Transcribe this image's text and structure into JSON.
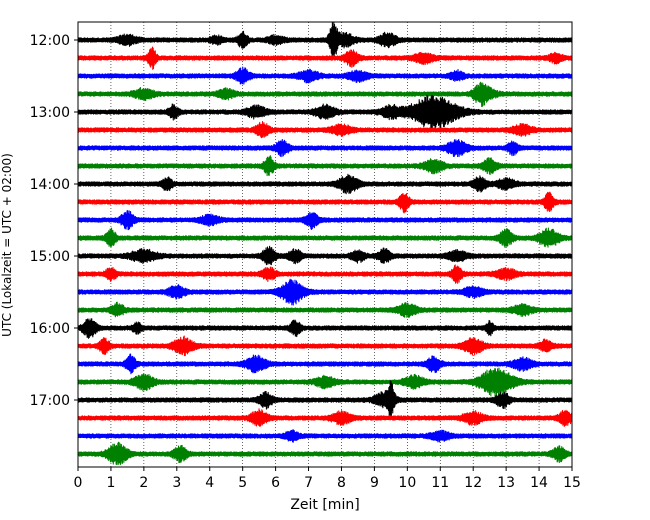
{
  "chart_data": {
    "type": "line",
    "title": "",
    "xlabel": "Zeit  [min]",
    "ylabel": "UTC (Lokalzeit = UTC + 02:00)",
    "xlim": [
      0,
      15
    ],
    "x_ticks": [
      0,
      1,
      2,
      3,
      4,
      5,
      6,
      7,
      8,
      9,
      10,
      11,
      12,
      13,
      14,
      15
    ],
    "x_tick_labels": [
      "0",
      "1",
      "2",
      "3",
      "4",
      "5",
      "6",
      "7",
      "8",
      "9",
      "10",
      "11",
      "12",
      "13",
      "14",
      "15"
    ],
    "y_tick_labels": [
      "12:00",
      "13:00",
      "14:00",
      "15:00",
      "16:00",
      "17:00"
    ],
    "y_tick_rows": [
      0,
      4,
      8,
      12,
      16,
      20
    ],
    "grid": "vertical dotted",
    "color_cycle": [
      "#000000",
      "#ff0000",
      "#0000ff",
      "#008000"
    ],
    "rows": [
      {
        "start": "12:00",
        "color": "#000000",
        "events": [
          [
            1.5,
            0.3,
            1.0
          ],
          [
            4.2,
            0.2,
            0.8
          ],
          [
            5.0,
            0.15,
            1.6
          ],
          [
            6.0,
            0.25,
            0.8
          ],
          [
            7.75,
            0.12,
            4.0
          ],
          [
            8.1,
            0.3,
            1.4
          ],
          [
            9.4,
            0.25,
            1.5
          ]
        ]
      },
      {
        "start": "12:15",
        "color": "#ff0000",
        "events": [
          [
            2.25,
            0.12,
            2.2
          ],
          [
            8.3,
            0.2,
            1.6
          ],
          [
            10.5,
            0.3,
            1.0
          ],
          [
            14.5,
            0.2,
            0.9
          ]
        ]
      },
      {
        "start": "12:30",
        "color": "#0000ff",
        "events": [
          [
            5.0,
            0.2,
            1.6
          ],
          [
            7.0,
            0.3,
            1.1
          ],
          [
            8.5,
            0.3,
            1.0
          ],
          [
            11.5,
            0.2,
            1.0
          ]
        ]
      },
      {
        "start": "12:45",
        "color": "#008000",
        "events": [
          [
            2.0,
            0.3,
            1.1
          ],
          [
            4.5,
            0.25,
            1.0
          ],
          [
            12.2,
            0.2,
            1.6
          ],
          [
            12.4,
            0.3,
            1.1
          ]
        ]
      },
      {
        "start": "13:00",
        "color": "#000000",
        "events": [
          [
            2.9,
            0.15,
            1.4
          ],
          [
            5.4,
            0.3,
            1.2
          ],
          [
            7.5,
            0.3,
            1.4
          ],
          [
            9.5,
            0.3,
            1.2
          ],
          [
            10.8,
            0.7,
            3.6
          ]
        ]
      },
      {
        "start": "13:15",
        "color": "#ff0000",
        "events": [
          [
            5.6,
            0.2,
            1.5
          ],
          [
            8.0,
            0.3,
            1.0
          ],
          [
            13.5,
            0.3,
            1.0
          ]
        ]
      },
      {
        "start": "13:30",
        "color": "#0000ff",
        "events": [
          [
            6.2,
            0.2,
            1.5
          ],
          [
            11.5,
            0.3,
            1.6
          ],
          [
            13.2,
            0.15,
            1.4
          ]
        ]
      },
      {
        "start": "13:45",
        "color": "#008000",
        "events": [
          [
            5.8,
            0.15,
            2.0
          ],
          [
            10.8,
            0.3,
            1.3
          ],
          [
            12.5,
            0.2,
            1.6
          ]
        ]
      },
      {
        "start": "14:00",
        "color": "#000000",
        "events": [
          [
            2.7,
            0.15,
            1.4
          ],
          [
            8.2,
            0.3,
            1.8
          ],
          [
            12.2,
            0.2,
            1.4
          ],
          [
            13.0,
            0.3,
            1.0
          ]
        ]
      },
      {
        "start": "14:15",
        "color": "#ff0000",
        "events": [
          [
            9.9,
            0.15,
            2.0
          ],
          [
            14.3,
            0.15,
            1.8
          ]
        ]
      },
      {
        "start": "14:30",
        "color": "#0000ff",
        "events": [
          [
            1.5,
            0.2,
            1.8
          ],
          [
            7.1,
            0.2,
            1.7
          ],
          [
            4.0,
            0.3,
            0.9
          ]
        ]
      },
      {
        "start": "14:45",
        "color": "#008000",
        "events": [
          [
            1.0,
            0.15,
            1.8
          ],
          [
            13.0,
            0.2,
            1.7
          ],
          [
            14.3,
            0.3,
            1.9
          ]
        ]
      },
      {
        "start": "15:00",
        "color": "#000000",
        "events": [
          [
            2.0,
            0.4,
            1.3
          ],
          [
            5.8,
            0.2,
            1.9
          ],
          [
            6.6,
            0.2,
            1.3
          ],
          [
            8.5,
            0.2,
            1.2
          ],
          [
            9.3,
            0.2,
            1.4
          ],
          [
            11.5,
            0.3,
            1.0
          ]
        ]
      },
      {
        "start": "15:15",
        "color": "#ff0000",
        "events": [
          [
            1.0,
            0.15,
            1.4
          ],
          [
            5.8,
            0.2,
            1.3
          ],
          [
            11.5,
            0.15,
            1.8
          ],
          [
            13.0,
            0.3,
            1.1
          ]
        ]
      },
      {
        "start": "15:30",
        "color": "#0000ff",
        "events": [
          [
            3.0,
            0.25,
            1.3
          ],
          [
            6.5,
            0.35,
            2.5
          ],
          [
            12.0,
            0.3,
            1.0
          ]
        ]
      },
      {
        "start": "15:45",
        "color": "#008000",
        "events": [
          [
            1.2,
            0.2,
            1.3
          ],
          [
            10.0,
            0.3,
            1.3
          ],
          [
            13.5,
            0.3,
            1.0
          ]
        ]
      },
      {
        "start": "16:00",
        "color": "#000000",
        "events": [
          [
            0.35,
            0.2,
            2.0
          ],
          [
            1.8,
            0.15,
            1.0
          ],
          [
            6.6,
            0.15,
            1.6
          ],
          [
            12.5,
            0.1,
            1.5
          ]
        ]
      },
      {
        "start": "16:15",
        "color": "#ff0000",
        "events": [
          [
            0.8,
            0.15,
            1.6
          ],
          [
            3.2,
            0.3,
            1.8
          ],
          [
            12.0,
            0.3,
            1.6
          ],
          [
            14.2,
            0.2,
            1.2
          ]
        ]
      },
      {
        "start": "16:30",
        "color": "#0000ff",
        "events": [
          [
            1.6,
            0.15,
            1.8
          ],
          [
            5.4,
            0.3,
            1.7
          ],
          [
            10.8,
            0.2,
            1.6
          ],
          [
            13.5,
            0.3,
            1.2
          ]
        ]
      },
      {
        "start": "16:45",
        "color": "#008000",
        "events": [
          [
            2.0,
            0.3,
            1.6
          ],
          [
            7.5,
            0.3,
            1.1
          ],
          [
            10.2,
            0.3,
            1.3
          ],
          [
            12.7,
            0.5,
            3.0
          ]
        ]
      },
      {
        "start": "17:00",
        "color": "#000000",
        "events": [
          [
            5.7,
            0.2,
            1.6
          ],
          [
            9.5,
            0.1,
            3.2
          ],
          [
            9.3,
            0.3,
            1.5
          ],
          [
            12.9,
            0.2,
            1.6
          ]
        ]
      },
      {
        "start": "17:15",
        "color": "#ff0000",
        "events": [
          [
            5.5,
            0.25,
            1.6
          ],
          [
            8.0,
            0.3,
            1.2
          ],
          [
            12.0,
            0.3,
            1.3
          ],
          [
            14.8,
            0.2,
            1.5
          ]
        ]
      },
      {
        "start": "17:30",
        "color": "#0000ff",
        "events": [
          [
            6.5,
            0.2,
            1.0
          ],
          [
            11.0,
            0.3,
            0.9
          ]
        ]
      },
      {
        "start": "17:45",
        "color": "#008000",
        "events": [
          [
            1.2,
            0.3,
            2.3
          ],
          [
            3.1,
            0.2,
            1.6
          ],
          [
            14.6,
            0.2,
            1.5
          ]
        ]
      }
    ]
  }
}
